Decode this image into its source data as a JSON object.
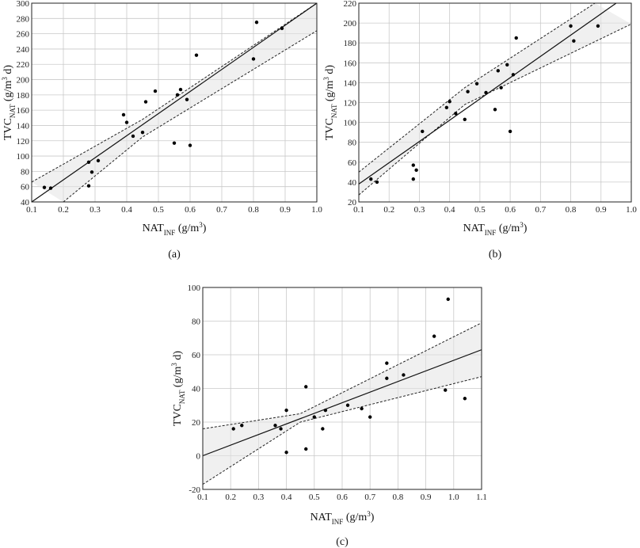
{
  "chart_data": [
    {
      "type": "scatter",
      "panel_label": "(a)",
      "xlabel": {
        "main": "NAT",
        "sub": "INF",
        "unit": " (g/m",
        "sup": "3",
        "end": ")"
      },
      "ylabel": {
        "main": "TVC",
        "sub": "NAT",
        "unit": " (g/m",
        "sup": "3",
        "end": " d)"
      },
      "xlim": [
        0.1,
        1.0
      ],
      "ylim": [
        40,
        300
      ],
      "xticks": [
        0.1,
        0.2,
        0.3,
        0.4,
        0.5,
        0.6,
        0.7,
        0.8,
        0.9,
        1.0
      ],
      "xtick_labels": [
        "0.1",
        "0.2",
        "0.3",
        "0.4",
        "0.5",
        "0.6",
        "0.7",
        "0.8",
        "0.9",
        "1.0"
      ],
      "yticks": [
        40,
        60,
        80,
        100,
        120,
        140,
        160,
        180,
        200,
        220,
        240,
        260,
        280,
        300
      ],
      "ytick_labels": [
        "40",
        "60",
        "80",
        "100",
        "120",
        "140",
        "160",
        "180",
        "200",
        "220",
        "240",
        "260",
        "280",
        "300"
      ],
      "grid": true,
      "points": [
        [
          0.14,
          59
        ],
        [
          0.16,
          58
        ],
        [
          0.28,
          92
        ],
        [
          0.28,
          61
        ],
        [
          0.29,
          79
        ],
        [
          0.31,
          94
        ],
        [
          0.39,
          154
        ],
        [
          0.4,
          144
        ],
        [
          0.42,
          126
        ],
        [
          0.45,
          131
        ],
        [
          0.46,
          171
        ],
        [
          0.49,
          185
        ],
        [
          0.55,
          117
        ],
        [
          0.56,
          180
        ],
        [
          0.57,
          187
        ],
        [
          0.59,
          174
        ],
        [
          0.6,
          114
        ],
        [
          0.62,
          232
        ],
        [
          0.8,
          227
        ],
        [
          0.81,
          275
        ],
        [
          0.89,
          267
        ]
      ],
      "fit_line": [
        [
          0.1,
          40
        ],
        [
          1.0,
          300
        ]
      ],
      "ci_upper": [
        [
          0.1,
          66
        ],
        [
          0.45,
          148
        ],
        [
          1.0,
          300
        ]
      ],
      "ci_lower": [
        [
          0.2,
          40
        ],
        [
          0.45,
          125
        ],
        [
          1.0,
          264
        ]
      ]
    },
    {
      "type": "scatter",
      "panel_label": "(b)",
      "xlabel": {
        "main": "NAT",
        "sub": "INF",
        "unit": " (g/m",
        "sup": "3",
        "end": ")"
      },
      "ylabel": {
        "main": "TVC",
        "sub": "NAT",
        "unit": " (g/m",
        "sup": "3",
        "end": " d)"
      },
      "xlim": [
        0.1,
        1.0
      ],
      "ylim": [
        20,
        220
      ],
      "xticks": [
        0.1,
        0.2,
        0.3,
        0.4,
        0.5,
        0.6,
        0.7,
        0.8,
        0.9,
        1.0
      ],
      "xtick_labels": [
        "0.1",
        "0.2",
        "0.3",
        "0.4",
        "0.5",
        "0.6",
        "0.7",
        "0.8",
        "0.9",
        "1.0"
      ],
      "yticks": [
        20,
        40,
        60,
        80,
        100,
        120,
        140,
        160,
        180,
        200,
        220
      ],
      "ytick_labels": [
        "20",
        "40",
        "60",
        "80",
        "100",
        "120",
        "140",
        "160",
        "180",
        "200",
        "220"
      ],
      "grid": true,
      "points": [
        [
          0.14,
          43
        ],
        [
          0.16,
          40
        ],
        [
          0.28,
          57
        ],
        [
          0.28,
          43
        ],
        [
          0.29,
          52
        ],
        [
          0.31,
          91
        ],
        [
          0.39,
          115
        ],
        [
          0.4,
          121
        ],
        [
          0.42,
          109
        ],
        [
          0.45,
          103
        ],
        [
          0.46,
          131
        ],
        [
          0.49,
          139
        ],
        [
          0.52,
          130
        ],
        [
          0.55,
          113
        ],
        [
          0.56,
          152
        ],
        [
          0.57,
          135
        ],
        [
          0.59,
          158
        ],
        [
          0.6,
          91
        ],
        [
          0.61,
          148
        ],
        [
          0.62,
          185
        ],
        [
          0.8,
          197
        ],
        [
          0.81,
          182
        ],
        [
          0.89,
          197
        ]
      ],
      "fit_line": [
        [
          0.1,
          38
        ],
        [
          0.95,
          220
        ]
      ],
      "ci_upper": [
        [
          0.1,
          50
        ],
        [
          0.45,
          135
        ],
        [
          0.88,
          220
        ]
      ],
      "ci_lower": [
        [
          0.1,
          27
        ],
        [
          0.45,
          118
        ],
        [
          1.0,
          199
        ]
      ]
    },
    {
      "type": "scatter",
      "panel_label": "(c)",
      "xlabel": {
        "main": "NAT",
        "sub": "INF",
        "unit": " (g/m",
        "sup": "3",
        "end": ")"
      },
      "ylabel": {
        "main": "TVC",
        "sub": "NAT",
        "unit": " (g/m",
        "sup": "3",
        "end": " d)"
      },
      "xlim": [
        0.1,
        1.1
      ],
      "ylim": [
        -20,
        100
      ],
      "xticks": [
        0.1,
        0.2,
        0.3,
        0.4,
        0.5,
        0.6,
        0.7,
        0.8,
        0.9,
        1.0,
        1.1
      ],
      "xtick_labels": [
        "0.1",
        "0.2",
        "0.3",
        "0.4",
        "0.5",
        "0.6",
        "0.7",
        "0.8",
        "0.9",
        "1.0",
        "1.1"
      ],
      "yticks": [
        -20,
        0,
        20,
        40,
        60,
        80,
        100
      ],
      "ytick_labels": [
        "-20",
        "0",
        "20",
        "40",
        "60",
        "80",
        "100"
      ],
      "grid": true,
      "points": [
        [
          0.21,
          16
        ],
        [
          0.24,
          18
        ],
        [
          0.36,
          18
        ],
        [
          0.38,
          16
        ],
        [
          0.4,
          2
        ],
        [
          0.4,
          27
        ],
        [
          0.47,
          4
        ],
        [
          0.47,
          41
        ],
        [
          0.5,
          23
        ],
        [
          0.53,
          16
        ],
        [
          0.54,
          27
        ],
        [
          0.62,
          30
        ],
        [
          0.67,
          28
        ],
        [
          0.7,
          23
        ],
        [
          0.76,
          55
        ],
        [
          0.76,
          46
        ],
        [
          0.82,
          48
        ],
        [
          0.93,
          71
        ],
        [
          0.97,
          39
        ],
        [
          0.98,
          93
        ],
        [
          1.04,
          34
        ]
      ],
      "fit_line": [
        [
          0.1,
          0
        ],
        [
          1.1,
          63
        ]
      ],
      "ci_upper": [
        [
          0.1,
          16
        ],
        [
          0.45,
          25
        ],
        [
          1.1,
          79
        ]
      ],
      "ci_lower": [
        [
          0.1,
          -17
        ],
        [
          0.45,
          20
        ],
        [
          1.1,
          47
        ]
      ]
    }
  ]
}
